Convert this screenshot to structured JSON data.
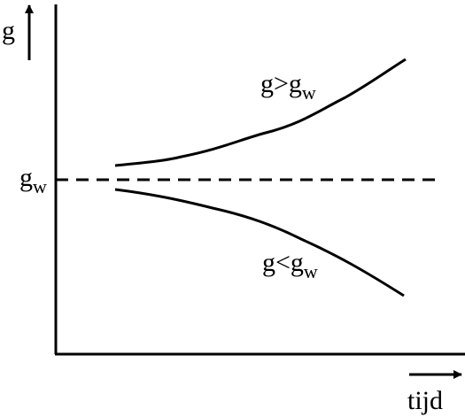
{
  "axes": {
    "y_label": "g",
    "x_label": "tijd"
  },
  "reference": {
    "label": {
      "main": "g",
      "sub": "w"
    }
  },
  "curves": [
    {
      "label": {
        "main": "g>g",
        "sub": "w"
      }
    },
    {
      "label": {
        "main": "g<g",
        "sub": "w"
      }
    }
  ]
}
